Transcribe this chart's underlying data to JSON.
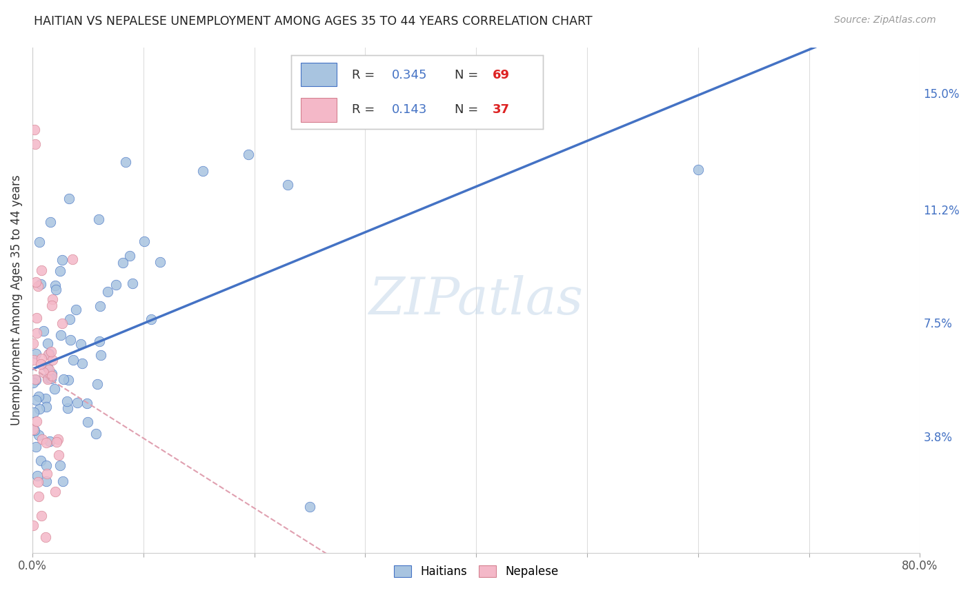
{
  "title": "HAITIAN VS NEPALESE UNEMPLOYMENT AMONG AGES 35 TO 44 YEARS CORRELATION CHART",
  "source": "Source: ZipAtlas.com",
  "ylabel": "Unemployment Among Ages 35 to 44 years",
  "xlim": [
    0.0,
    0.8
  ],
  "ylim": [
    0.0,
    0.165
  ],
  "ytick_labels_right": [
    "15.0%",
    "11.2%",
    "7.5%",
    "3.8%"
  ],
  "ytick_values_right": [
    0.15,
    0.112,
    0.075,
    0.038
  ],
  "blue_color": "#a8c4e0",
  "blue_edge_color": "#4472c4",
  "pink_color": "#f4b8c8",
  "pink_edge_color": "#d48090",
  "blue_line_color": "#4472c4",
  "pink_line_color": "#e0a0b0",
  "r_value_color": "#4472c4",
  "n_value_color": "#dd2222",
  "watermark": "ZIPatlas",
  "grid_color": "#dddddd",
  "legend_r1": "R = ",
  "legend_v1": "0.345",
  "legend_n1_label": "N = ",
  "legend_n1_val": "69",
  "legend_r2": "R = ",
  "legend_v2": "0.143",
  "legend_n2_label": "N = ",
  "legend_n2_val": "37"
}
